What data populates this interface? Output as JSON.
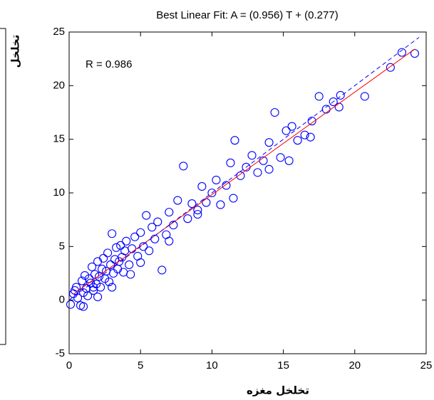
{
  "chart_data": {
    "type": "scatter",
    "title": "Best Linear Fit:  A = (0.956) T + (0.277)",
    "annotation": "R = 0.986",
    "xlabel": "تخلخل مغزه",
    "ylabel": "تخلخل",
    "xlim": [
      0,
      25
    ],
    "ylim": [
      -5,
      25
    ],
    "xticks": [
      0,
      5,
      10,
      15,
      20,
      25
    ],
    "yticks": [
      -5,
      0,
      5,
      10,
      15,
      20,
      25
    ],
    "color": "#0000ff",
    "x": [
      0.1,
      0.3,
      0.5,
      0.6,
      0.8,
      0.9,
      1.0,
      1.1,
      1.2,
      1.3,
      1.4,
      1.5,
      1.6,
      1.7,
      1.8,
      1.9,
      2.0,
      2.1,
      2.2,
      2.3,
      2.4,
      2.5,
      2.6,
      2.7,
      2.8,
      2.9,
      3.0,
      3.1,
      3.2,
      3.3,
      3.4,
      3.5,
      3.6,
      3.7,
      3.8,
      3.9,
      4.0,
      4.2,
      4.4,
      4.6,
      4.8,
      5.0,
      5.2,
      5.4,
      5.6,
      5.8,
      6.0,
      6.2,
      6.5,
      6.8,
      7.0,
      7.3,
      7.6,
      8.0,
      8.3,
      8.6,
      9.0,
      9.3,
      9.6,
      10.0,
      10.3,
      10.6,
      11.0,
      11.3,
      11.6,
      12.0,
      12.4,
      12.8,
      13.2,
      13.6,
      14.0,
      14.4,
      14.8,
      15.2,
      15.6,
      16.0,
      16.5,
      17.0,
      17.5,
      18.0,
      18.5,
      19.0,
      20.7,
      22.5,
      23.3,
      24.2,
      1.0,
      2.0,
      3.0,
      5.0,
      7.0,
      9.0,
      11.5,
      14.0,
      15.4,
      16.9,
      18.9,
      0.4,
      1.7,
      4.3
    ],
    "y": [
      -0.4,
      0.6,
      1.2,
      0.2,
      -0.5,
      1.8,
      0.7,
      2.3,
      1.1,
      0.4,
      2.0,
      1.6,
      3.1,
      0.9,
      2.4,
      1.5,
      3.6,
      2.2,
      1.2,
      2.9,
      3.9,
      2.0,
      2.7,
      4.4,
      1.7,
      3.3,
      6.2,
      2.5,
      3.8,
      4.9,
      2.9,
      3.6,
      5.1,
      4.0,
      2.6,
      4.6,
      5.5,
      3.3,
      4.8,
      5.9,
      4.1,
      6.3,
      5.0,
      7.9,
      4.6,
      6.8,
      5.7,
      7.3,
      2.8,
      6.1,
      8.2,
      7.0,
      9.3,
      12.5,
      7.6,
      9.0,
      8.4,
      10.6,
      9.1,
      10.0,
      11.2,
      8.9,
      10.7,
      12.8,
      14.9,
      11.6,
      12.4,
      13.5,
      11.9,
      13.0,
      14.7,
      17.5,
      13.3,
      15.8,
      16.2,
      14.9,
      15.4,
      16.7,
      19.0,
      17.8,
      18.5,
      19.1,
      19.0,
      21.7,
      23.1,
      23.0,
      -0.6,
      0.3,
      1.2,
      3.5,
      5.5,
      8.0,
      9.5,
      12.2,
      13.0,
      15.2,
      18.0,
      0.9,
      1.2,
      2.4
    ],
    "lines": [
      {
        "color": "#ff0000",
        "style": "solid",
        "x": [
          0.3,
          24.2
        ],
        "y": [
          0.56,
          23.41
        ]
      },
      {
        "color": "#0000ff",
        "style": "dashed",
        "x": [
          0,
          24.5
        ],
        "y": [
          0,
          24.5
        ]
      }
    ]
  }
}
